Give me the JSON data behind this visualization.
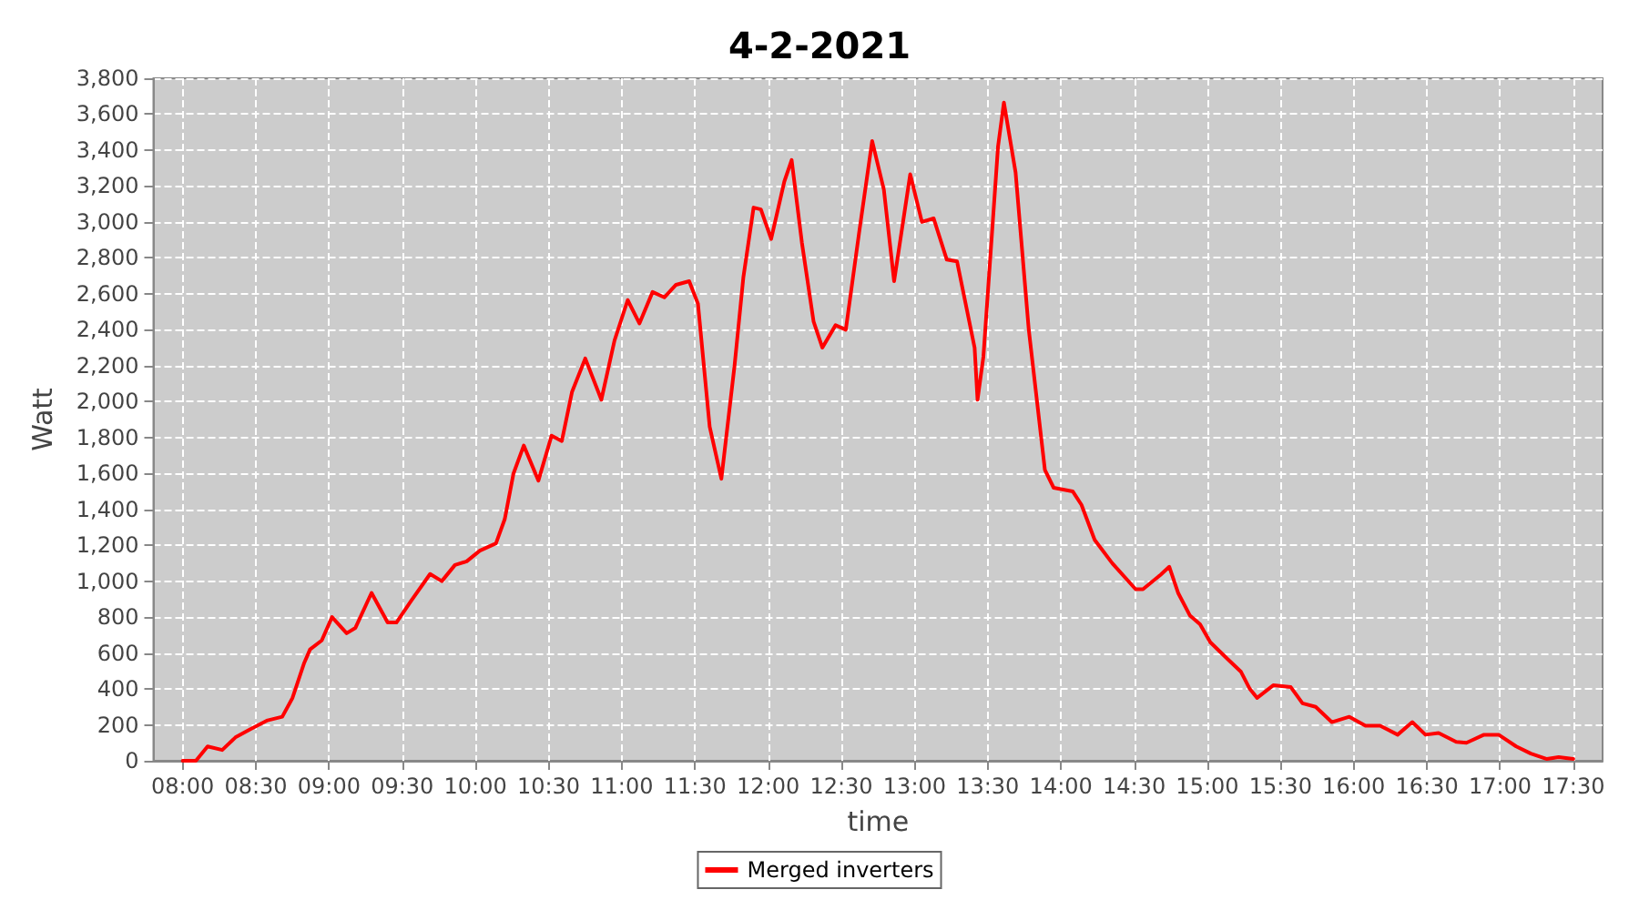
{
  "chart_data": {
    "type": "line",
    "title": "4-2-2021",
    "xlabel": "time",
    "ylabel": "Watt",
    "xlim": [
      7.8,
      17.7
    ],
    "xticks": [
      {
        "value": 8,
        "label": "08:00"
      },
      {
        "value": 8.5,
        "label": "08:30"
      },
      {
        "value": 9,
        "label": "09:00"
      },
      {
        "value": 9.5,
        "label": "09:30"
      },
      {
        "value": 10,
        "label": "10:00"
      },
      {
        "value": 10.5,
        "label": "10:30"
      },
      {
        "value": 11,
        "label": "11:00"
      },
      {
        "value": 11.5,
        "label": "11:30"
      },
      {
        "value": 12,
        "label": "12:00"
      },
      {
        "value": 12.5,
        "label": "12:30"
      },
      {
        "value": 13,
        "label": "13:00"
      },
      {
        "value": 13.5,
        "label": "13:30"
      },
      {
        "value": 14,
        "label": "14:00"
      },
      {
        "value": 14.5,
        "label": "14:30"
      },
      {
        "value": 15,
        "label": "15:00"
      },
      {
        "value": 15.5,
        "label": "15:30"
      },
      {
        "value": 16,
        "label": "16:00"
      },
      {
        "value": 16.5,
        "label": "16:30"
      },
      {
        "value": 17,
        "label": "17:00"
      },
      {
        "value": 17.5,
        "label": "17:30"
      }
    ],
    "ylim": [
      0,
      3800
    ],
    "yticks": [
      0,
      200,
      400,
      600,
      800,
      {
        "value": 1000,
        "label": "1,000"
      },
      {
        "value": 1200,
        "label": "1,200"
      },
      {
        "value": 1400,
        "label": "1,400"
      },
      {
        "value": 1600,
        "label": "1,600"
      },
      {
        "value": 1800,
        "label": "1,800"
      },
      {
        "value": 2000,
        "label": "2,000"
      },
      {
        "value": 2200,
        "label": "2,200"
      },
      {
        "value": 2400,
        "label": "2,400"
      },
      {
        "value": 2600,
        "label": "2,600"
      },
      {
        "value": 2800,
        "label": "2,800"
      },
      {
        "value": 3000,
        "label": "3,000"
      },
      {
        "value": 3200,
        "label": "3,200"
      },
      {
        "value": 3400,
        "label": "3,400"
      },
      {
        "value": 3600,
        "label": "3,600"
      },
      {
        "value": 3800,
        "label": "3,800"
      }
    ],
    "grid": true,
    "legend": "bottom",
    "marker": "none",
    "line_style": "solid",
    "series": [
      {
        "name": "Merged inverters",
        "color": "#ff0000",
        "x": [
          8.0,
          8.09,
          8.17,
          8.27,
          8.36,
          8.46,
          8.58,
          8.68,
          8.75,
          8.83,
          8.87,
          8.95,
          9.02,
          9.12,
          9.18,
          9.29,
          9.4,
          9.46,
          9.56,
          9.69,
          9.77,
          9.86,
          9.94,
          10.03,
          10.14,
          10.2,
          10.26,
          10.33,
          10.43,
          10.52,
          10.59,
          10.66,
          10.75,
          10.86,
          10.95,
          11.04,
          11.12,
          11.21,
          11.29,
          11.37,
          11.46,
          11.52,
          11.6,
          11.68,
          11.77,
          11.83,
          11.9,
          11.95,
          12.02,
          12.11,
          12.16,
          12.23,
          12.31,
          12.37,
          12.46,
          12.53,
          12.62,
          12.71,
          12.79,
          12.86,
          12.97,
          13.05,
          13.13,
          13.22,
          13.29,
          13.41,
          13.43,
          13.47,
          13.57,
          13.61,
          13.69,
          13.78,
          13.89,
          13.95,
          14.08,
          14.14,
          14.23,
          14.35,
          14.51,
          14.56,
          14.68,
          14.74,
          14.8,
          14.88,
          14.95,
          15.02,
          15.14,
          15.23,
          15.29,
          15.34,
          15.45,
          15.57,
          15.65,
          15.74,
          15.85,
          15.97,
          16.08,
          16.18,
          16.3,
          16.4,
          16.49,
          16.58,
          16.7,
          16.77,
          16.89,
          16.99,
          17.11,
          17.21,
          17.32,
          17.4,
          17.5
        ],
        "values": [
          0,
          0,
          80,
          60,
          130,
          175,
          225,
          245,
          350,
          545,
          620,
          670,
          800,
          710,
          740,
          935,
          770,
          770,
          890,
          1040,
          1000,
          1090,
          1110,
          1170,
          1210,
          1345,
          1600,
          1755,
          1560,
          1810,
          1780,
          2055,
          2240,
          2010,
          2340,
          2565,
          2435,
          2610,
          2580,
          2650,
          2670,
          2545,
          1860,
          1570,
          2200,
          2690,
          3080,
          3070,
          2905,
          3225,
          3345,
          2885,
          2445,
          2300,
          2425,
          2400,
          2935,
          3450,
          3180,
          2670,
          3265,
          3000,
          3020,
          2790,
          2780,
          2300,
          2010,
          2250,
          3420,
          3665,
          3275,
          2400,
          1620,
          1520,
          1500,
          1425,
          1230,
          1100,
          955,
          955,
          1035,
          1080,
          935,
          810,
          760,
          660,
          565,
          495,
          400,
          350,
          420,
          410,
          320,
          300,
          215,
          245,
          195,
          195,
          145,
          215,
          145,
          155,
          105,
          100,
          145,
          145,
          80,
          40,
          10,
          20,
          10
        ]
      }
    ]
  }
}
